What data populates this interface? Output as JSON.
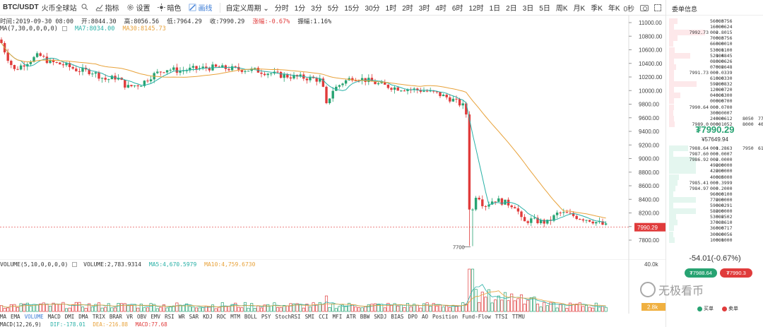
{
  "toolbar": {
    "symbol": "BTC/USDT",
    "exchange": "火币全球站",
    "indicator_label": "指标",
    "settings_label": "设置",
    "theme_label": "暗色",
    "draw_label": "画线",
    "custom_period_label": "自定义周期",
    "periods": [
      "分时",
      "1分",
      "3分",
      "5分",
      "15分",
      "30分",
      "1时",
      "2时",
      "3时",
      "4时",
      "6时",
      "12时",
      "1日",
      "2日",
      "3日",
      "5日",
      "周K",
      "月K",
      "季K",
      "年K"
    ],
    "countdown": "0秒"
  },
  "info": {
    "date": "时间:2019-09-30 08:00",
    "open": "开:8044.30",
    "high": "高:8056.56",
    "low": "低:7964.29",
    "close": "收:7990.29",
    "change": "涨幅:-0.67%",
    "amplitude": "振幅:1.16%"
  },
  "ma": {
    "params": "MA(7,30,0,0,0,0)",
    "ma7": "MA7:8034.00",
    "ma30": "MA30:8145.73"
  },
  "price_axis": [
    "11000.00",
    "10800.00",
    "10600.00",
    "10400.00",
    "10200.00",
    "10000.00",
    "9800.00",
    "9600.00",
    "9400.00",
    "9200.00",
    "9000.00",
    "8800.00",
    "8600.00",
    "8400.00",
    "8200.00",
    "8000.00",
    "7800.00"
  ],
  "current_price_tag": "7990.29",
  "low_marker": "7700",
  "volume": {
    "params": "VOLUME(5,10,0,0,0,0)",
    "value": "VOLUME:2,783.9314",
    "ma5": "MA5:4,670.5979",
    "ma10": "MA10:4,759.6730",
    "axis_top": "40.0k",
    "tag": "2.8k"
  },
  "indicator_tabs": [
    "MA",
    "EMA",
    "VOLUME",
    "MACD",
    "DMI",
    "DMA",
    "TRIX",
    "BRAR",
    "VR",
    "OBV",
    "EMV",
    "RSI",
    "WR",
    "SAR",
    "KDJ",
    "ROC",
    "MTM",
    "BOLL",
    "PSY",
    "StochRSI",
    "SMI",
    "CCI",
    "MFI",
    "ATR",
    "BBW",
    "SKDJ",
    "BIAS",
    "DPO",
    "AO",
    "Position",
    "Fund-Flow",
    "TTSI",
    "TTMU"
  ],
  "active_indicator": "VOLUME",
  "macd": {
    "params": "MACD(12,26,9)",
    "dif": "DIF:-178.01",
    "dea": "DEA:-216.88",
    "macd": "MACD:77.68"
  },
  "orderbook": {
    "title": "委单信息",
    "asks": [
      {
        "price": "",
        "qty": "56000",
        "amount": "0.3756"
      },
      {
        "price": "",
        "qty": "16000",
        "amount": "0.0624"
      },
      {
        "price": "7992.73",
        "qty": "000",
        "amount": "2.8015"
      },
      {
        "price": "",
        "qty": "70000",
        "amount": "0.3756"
      },
      {
        "price": "",
        "qty": "66000",
        "amount": "0.0010"
      },
      {
        "price": "",
        "qty": "53000",
        "amount": "0.1100"
      },
      {
        "price": "",
        "qty": "52000",
        "amount": "1.4845"
      },
      {
        "price": "",
        "qty": "08000",
        "amount": "0.0626"
      },
      {
        "price": "",
        "qty": "07000",
        "amount": "0.2648"
      },
      {
        "price": "7991.73",
        "qty": "000",
        "amount": "0.0339"
      },
      {
        "price": "",
        "qty": "61000",
        "amount": "0.0330"
      },
      {
        "price": "",
        "qty": "59000",
        "amount": "2.0832"
      },
      {
        "price": "",
        "qty": "12000",
        "amount": "0.0720"
      },
      {
        "price": "",
        "qty": "04000",
        "amount": "0.6300"
      },
      {
        "price": "",
        "qty": "00000",
        "amount": "0.0700"
      },
      {
        "price": "7990.64",
        "qty": "000",
        "amount": "0.0700"
      },
      {
        "price": "",
        "qty": "3000",
        "amount": "0.0007"
      },
      {
        "price": "",
        "qty": "24000",
        "amount": "0.0612",
        "price2": "8050",
        "qty2": "77."
      },
      {
        "price": "7989.0",
        "qty": "0000",
        "amount": "0.1052",
        "price2": "8000",
        "qty2": "40."
      }
    ],
    "last_price": "₮7990.29",
    "last_cny": "¥57649.94",
    "bids": [
      {
        "price": "7988.64",
        "qty": "000",
        "amount": "1.2863",
        "price2": "7950",
        "qty2": "61."
      },
      {
        "price": "7987.60",
        "qty": "000",
        "amount": "0.0007"
      },
      {
        "price": "7986.92",
        "qty": "000",
        "amount": "2.0000"
      },
      {
        "price": "",
        "qty": "49000",
        "amount": "2.0000"
      },
      {
        "price": "",
        "qty": "42000",
        "amount": "2.0000"
      },
      {
        "price": "",
        "qty": "40000",
        "amount": "0.5000"
      },
      {
        "price": "7985.41",
        "qty": "000",
        "amount": "0.3999"
      },
      {
        "price": "7984.97",
        "qty": "000",
        "amount": "0.2000"
      },
      {
        "price": "",
        "qty": "96000",
        "amount": "0.0100"
      },
      {
        "price": "",
        "qty": "77000",
        "amount": "2.0000"
      },
      {
        "price": "",
        "qty": "59000",
        "amount": "0.0291"
      },
      {
        "price": "",
        "qty": "58000",
        "amount": "2.0000"
      },
      {
        "price": "",
        "qty": "53000",
        "amount": "0.2502"
      },
      {
        "price": "",
        "qty": "37000",
        "amount": "0.3610"
      },
      {
        "price": "",
        "qty": "36000",
        "amount": "0.0717"
      },
      {
        "price": "",
        "qty": "30000",
        "amount": "0.0056"
      },
      {
        "price": "",
        "qty": "10000",
        "amount": "0.1000"
      }
    ],
    "change": "-54.01(-0.67%)",
    "buy_btn": "₮7988.64",
    "sell_btn": "₮7990.3",
    "legend_buy": "买单",
    "legend_sell": "卖单"
  },
  "watermark": "无极看币",
  "colors": {
    "up": "#27a372",
    "down": "#e03b3b",
    "ma7": "#27b0a6",
    "ma30": "#e8a23a",
    "accent": "#3a7bd5"
  }
}
